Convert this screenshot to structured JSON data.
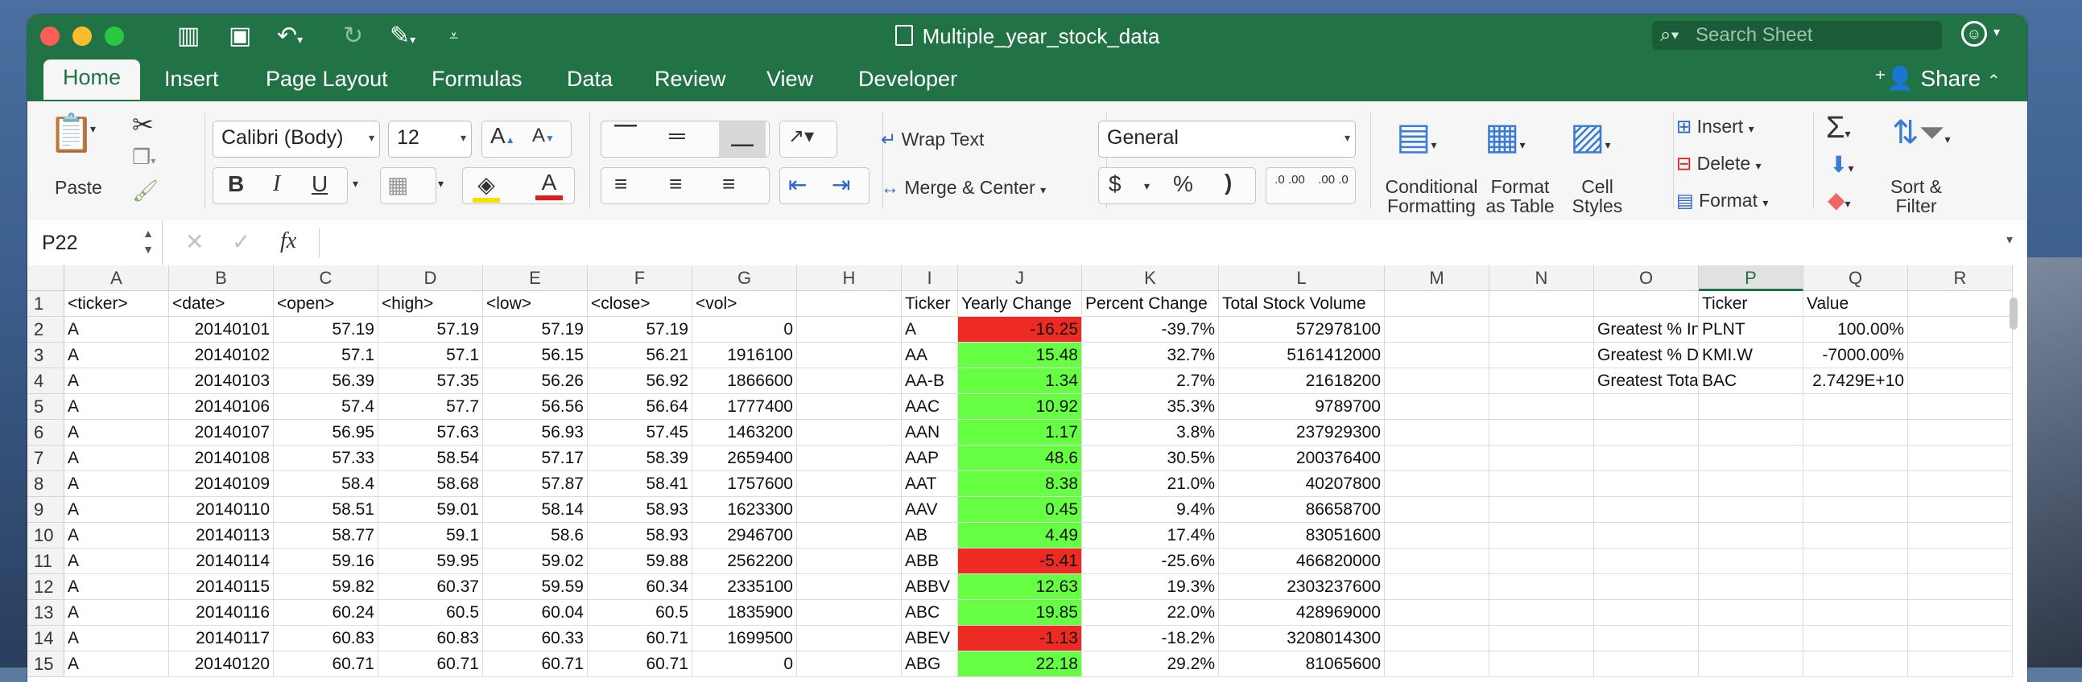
{
  "window": {
    "title": "Multiple_year_stock_data",
    "search_placeholder": "Search Sheet"
  },
  "menu_tabs": [
    "Home",
    "Insert",
    "Page Layout",
    "Formulas",
    "Data",
    "Review",
    "View",
    "Developer"
  ],
  "active_tab": "Home",
  "share_label": "Share",
  "ribbon": {
    "paste": "Paste",
    "font_name": "Calibri (Body)",
    "font_size": "12",
    "bold": "B",
    "italic": "I",
    "underline": "U",
    "wrap_text": "Wrap Text",
    "merge_center": "Merge & Center",
    "number_format": "General",
    "currency": "$",
    "percent": "%",
    "comma": ")",
    "inc_decimal": ".0 .00",
    "dec_decimal": ".00 .0",
    "conditional_formatting": [
      "Conditional",
      "Formatting"
    ],
    "format_as_table": [
      "Format",
      "as Table"
    ],
    "cell_styles": [
      "Cell",
      "Styles"
    ],
    "insert": "Insert",
    "delete": "Delete",
    "format": "Format",
    "sort_filter": [
      "Sort &",
      "Filter"
    ]
  },
  "formula_bar": {
    "name_box": "P22",
    "fx": "fx",
    "formula": ""
  },
  "colors": {
    "excel_green": "#217346",
    "positive_fill": "#66ff44",
    "negative_fill": "#ee2b23"
  },
  "grid": {
    "columns": [
      "A",
      "B",
      "C",
      "D",
      "E",
      "F",
      "G",
      "H",
      "I",
      "J",
      "K",
      "L",
      "M",
      "N",
      "O",
      "P",
      "Q",
      "R"
    ],
    "selected_column": "P",
    "rows": [
      {
        "num": "1",
        "cells": [
          "<ticker>",
          "<date>",
          "<open>",
          "<high>",
          "<low>",
          "<close>",
          "<vol>",
          "",
          "Ticker",
          "Yearly Change",
          "Percent Change",
          "Total Stock Volume",
          "",
          "",
          "",
          "Ticker",
          "Value",
          ""
        ]
      },
      {
        "num": "2",
        "cells": [
          "A",
          "20140101",
          "57.19",
          "57.19",
          "57.19",
          "57.19",
          "0",
          "",
          "A",
          "-16.25",
          "-39.7%",
          "572978100",
          "",
          "",
          "Greatest % Increase",
          "PLNT",
          "100.00%",
          ""
        ]
      },
      {
        "num": "3",
        "cells": [
          "A",
          "20140102",
          "57.1",
          "57.1",
          "56.15",
          "56.21",
          "1916100",
          "",
          "AA",
          "15.48",
          "32.7%",
          "5161412000",
          "",
          "",
          "Greatest % Decrease",
          "KMI.W",
          "-7000.00%",
          ""
        ]
      },
      {
        "num": "4",
        "cells": [
          "A",
          "20140103",
          "56.39",
          "57.35",
          "56.26",
          "56.92",
          "1866600",
          "",
          "AA-B",
          "1.34",
          "2.7%",
          "21618200",
          "",
          "",
          "Greatest Total Volume",
          "BAC",
          "2.7429E+10",
          ""
        ]
      },
      {
        "num": "5",
        "cells": [
          "A",
          "20140106",
          "57.4",
          "57.7",
          "56.56",
          "56.64",
          "1777400",
          "",
          "AAC",
          "10.92",
          "35.3%",
          "9789700",
          "",
          "",
          "",
          "",
          "",
          ""
        ]
      },
      {
        "num": "6",
        "cells": [
          "A",
          "20140107",
          "56.95",
          "57.63",
          "56.93",
          "57.45",
          "1463200",
          "",
          "AAN",
          "1.17",
          "3.8%",
          "237929300",
          "",
          "",
          "",
          "",
          "",
          ""
        ]
      },
      {
        "num": "7",
        "cells": [
          "A",
          "20140108",
          "57.33",
          "58.54",
          "57.17",
          "58.39",
          "2659400",
          "",
          "AAP",
          "48.6",
          "30.5%",
          "200376400",
          "",
          "",
          "",
          "",
          "",
          ""
        ]
      },
      {
        "num": "8",
        "cells": [
          "A",
          "20140109",
          "58.4",
          "58.68",
          "57.87",
          "58.41",
          "1757600",
          "",
          "AAT",
          "8.38",
          "21.0%",
          "40207800",
          "",
          "",
          "",
          "",
          "",
          ""
        ]
      },
      {
        "num": "9",
        "cells": [
          "A",
          "20140110",
          "58.51",
          "59.01",
          "58.14",
          "58.93",
          "1623300",
          "",
          "AAV",
          "0.45",
          "9.4%",
          "86658700",
          "",
          "",
          "",
          "",
          "",
          ""
        ]
      },
      {
        "num": "10",
        "cells": [
          "A",
          "20140113",
          "58.77",
          "59.1",
          "58.6",
          "58.93",
          "2946700",
          "",
          "AB",
          "4.49",
          "17.4%",
          "83051600",
          "",
          "",
          "",
          "",
          "",
          ""
        ]
      },
      {
        "num": "11",
        "cells": [
          "A",
          "20140114",
          "59.16",
          "59.95",
          "59.02",
          "59.88",
          "2562200",
          "",
          "ABB",
          "-5.41",
          "-25.6%",
          "466820000",
          "",
          "",
          "",
          "",
          "",
          ""
        ]
      },
      {
        "num": "12",
        "cells": [
          "A",
          "20140115",
          "59.82",
          "60.37",
          "59.59",
          "60.34",
          "2335100",
          "",
          "ABBV",
          "12.63",
          "19.3%",
          "2303237600",
          "",
          "",
          "",
          "",
          "",
          ""
        ]
      },
      {
        "num": "13",
        "cells": [
          "A",
          "20140116",
          "60.24",
          "60.5",
          "60.04",
          "60.5",
          "1835900",
          "",
          "ABC",
          "19.85",
          "22.0%",
          "428969000",
          "",
          "",
          "",
          "",
          "",
          ""
        ]
      },
      {
        "num": "14",
        "cells": [
          "A",
          "20140117",
          "60.83",
          "60.83",
          "60.33",
          "60.71",
          "1699500",
          "",
          "ABEV",
          "-1.13",
          "-18.2%",
          "3208014300",
          "",
          "",
          "",
          "",
          "",
          ""
        ]
      },
      {
        "num": "15",
        "cells": [
          "A",
          "20140120",
          "60.71",
          "60.71",
          "60.71",
          "60.71",
          "0",
          "",
          "ABG",
          "22.18",
          "29.2%",
          "81065600",
          "",
          "",
          "",
          "",
          "",
          ""
        ]
      }
    ]
  }
}
